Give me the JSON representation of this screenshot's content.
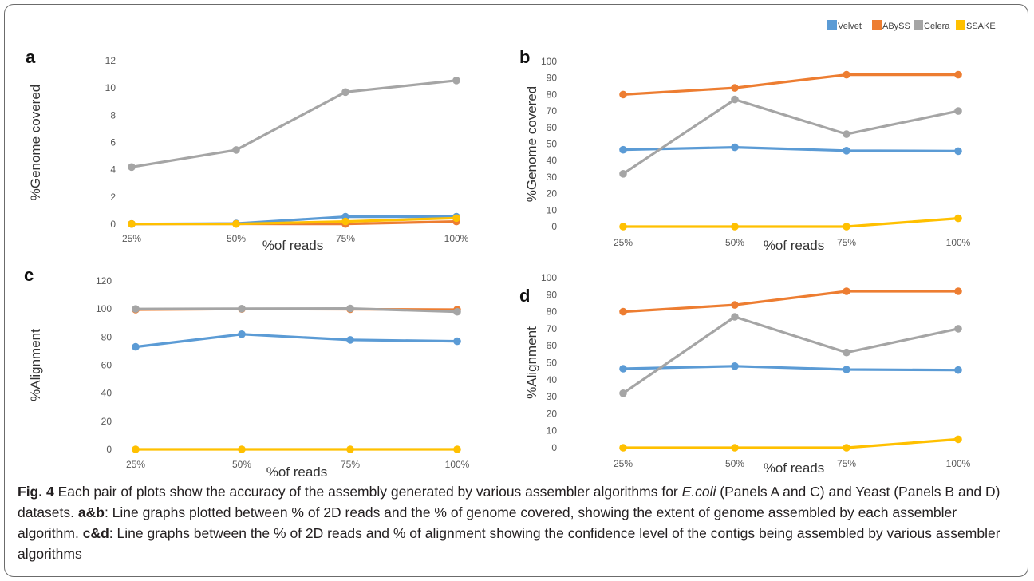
{
  "legend": [
    {
      "name": "Velvet",
      "color": "#5b9bd5"
    },
    {
      "name": "ABySS",
      "color": "#ed7d31"
    },
    {
      "name": "Celera",
      "color": "#a5a5a5"
    },
    {
      "name": "SSAKE",
      "color": "#ffc000"
    }
  ],
  "chart_data": [
    {
      "panel": "a",
      "type": "line",
      "categories": [
        "25%",
        "50%",
        "75%",
        "100%"
      ],
      "xlabel": "%of reads",
      "ylabel": "%Genome covered",
      "ylim": [
        0,
        12
      ],
      "yticks": [
        0,
        2,
        4,
        6,
        8,
        10,
        12
      ],
      "grid": false,
      "series": [
        {
          "name": "Velvet",
          "values": [
            0.02,
            0.05,
            0.55,
            0.55
          ]
        },
        {
          "name": "ABySS",
          "values": [
            0.02,
            0.03,
            0.02,
            0.2
          ]
        },
        {
          "name": "Celera",
          "values": [
            4.2,
            5.45,
            9.7,
            10.55
          ]
        },
        {
          "name": "SSAKE",
          "values": [
            0.02,
            0.02,
            0.2,
            0.45
          ]
        }
      ]
    },
    {
      "panel": "b",
      "type": "line",
      "categories": [
        "25%",
        "50%",
        "75%",
        "100%"
      ],
      "xlabel": "%of reads",
      "ylabel": "%Genome covered",
      "ylim": [
        0,
        100
      ],
      "yticks": [
        0,
        10,
        20,
        30,
        40,
        50,
        60,
        70,
        80,
        90,
        100
      ],
      "grid": false,
      "series": [
        {
          "name": "Velvet",
          "values": [
            46.5,
            48,
            46,
            45.7
          ]
        },
        {
          "name": "ABySS",
          "values": [
            80,
            84,
            92,
            92
          ]
        },
        {
          "name": "Celera",
          "values": [
            32,
            77,
            56,
            70
          ]
        },
        {
          "name": "SSAKE",
          "values": [
            0,
            0,
            0,
            5
          ]
        }
      ]
    },
    {
      "panel": "c",
      "type": "line",
      "categories": [
        "25%",
        "50%",
        "75%",
        "100%"
      ],
      "xlabel": "%of reads",
      "ylabel": "%Alignment",
      "ylim": [
        0,
        120
      ],
      "yticks": [
        0,
        20,
        40,
        60,
        80,
        100,
        120
      ],
      "grid": false,
      "series": [
        {
          "name": "Velvet",
          "values": [
            73,
            82,
            78,
            77
          ]
        },
        {
          "name": "ABySS",
          "values": [
            99.5,
            100,
            99.8,
            99.5
          ]
        },
        {
          "name": "Celera",
          "values": [
            100,
            100.2,
            100.3,
            98
          ]
        },
        {
          "name": "SSAKE",
          "values": [
            0,
            0,
            0,
            0
          ]
        }
      ]
    },
    {
      "panel": "d",
      "type": "line",
      "categories": [
        "25%",
        "50%",
        "75%",
        "100%"
      ],
      "xlabel": "%of reads",
      "ylabel": "%Alignment",
      "ylim": [
        0,
        100
      ],
      "yticks": [
        0,
        10,
        20,
        30,
        40,
        50,
        60,
        70,
        80,
        90,
        100
      ],
      "grid": false,
      "series": [
        {
          "name": "Velvet",
          "values": [
            46.5,
            48,
            46,
            45.7
          ]
        },
        {
          "name": "ABySS",
          "values": [
            80,
            84,
            92,
            92
          ]
        },
        {
          "name": "Celera",
          "values": [
            32,
            77,
            56,
            70
          ]
        },
        {
          "name": "SSAKE",
          "values": [
            0,
            0,
            0,
            5
          ]
        }
      ]
    }
  ],
  "caption": {
    "fig_label": "Fig. 4",
    "text1": " Each pair of plots show the accuracy of the assembly generated by various assembler algorithms for ",
    "organism": "E.coli",
    "text2": " (Panels A and C) and Yeast (Panels B and D) datasets. ",
    "bold_ab": "a&b",
    "text3": ": Line graphs plotted between % of 2D reads and the % of genome covered, showing the extent of genome assembled by each assembler algorithm. ",
    "bold_cd": "c&d",
    "text4": ": Line graphs between the % of 2D reads and % of alignment showing the confidence level of the contigs being assembled by various assembler algorithms"
  }
}
